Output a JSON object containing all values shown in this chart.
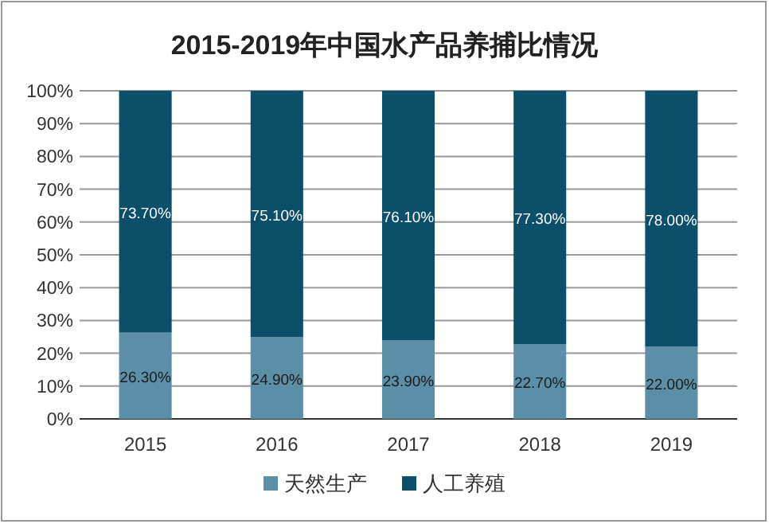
{
  "chart_data": {
    "type": "bar",
    "title": "2015-2019年中国水产品养捕比情况",
    "stacked": true,
    "categories": [
      "2015",
      "2016",
      "2017",
      "2018",
      "2019"
    ],
    "series": [
      {
        "name": "天然生产",
        "color": "#5b8fa8",
        "values": [
          26.3,
          24.9,
          23.9,
          22.7,
          22.0
        ],
        "value_labels": [
          "26.30%",
          "24.90%",
          "23.90%",
          "22.70%",
          "22.00%"
        ]
      },
      {
        "name": "人工养殖",
        "color": "#0b4f6a",
        "values": [
          73.7,
          75.1,
          76.1,
          77.3,
          78.0
        ],
        "value_labels": [
          "73.70%",
          "75.10%",
          "76.10%",
          "77.30%",
          "78.00%"
        ]
      }
    ],
    "ylim": [
      0,
      100
    ],
    "yticks": [
      {
        "value": 0,
        "label": "0%"
      },
      {
        "value": 10,
        "label": "10%"
      },
      {
        "value": 20,
        "label": "20%"
      },
      {
        "value": 30,
        "label": "30%"
      },
      {
        "value": 40,
        "label": "40%"
      },
      {
        "value": 50,
        "label": "50%"
      },
      {
        "value": 60,
        "label": "60%"
      },
      {
        "value": 70,
        "label": "70%"
      },
      {
        "value": 80,
        "label": "80%"
      },
      {
        "value": 90,
        "label": "90%"
      },
      {
        "value": 100,
        "label": "100%"
      }
    ],
    "grid": "y",
    "legend": "bottom"
  }
}
